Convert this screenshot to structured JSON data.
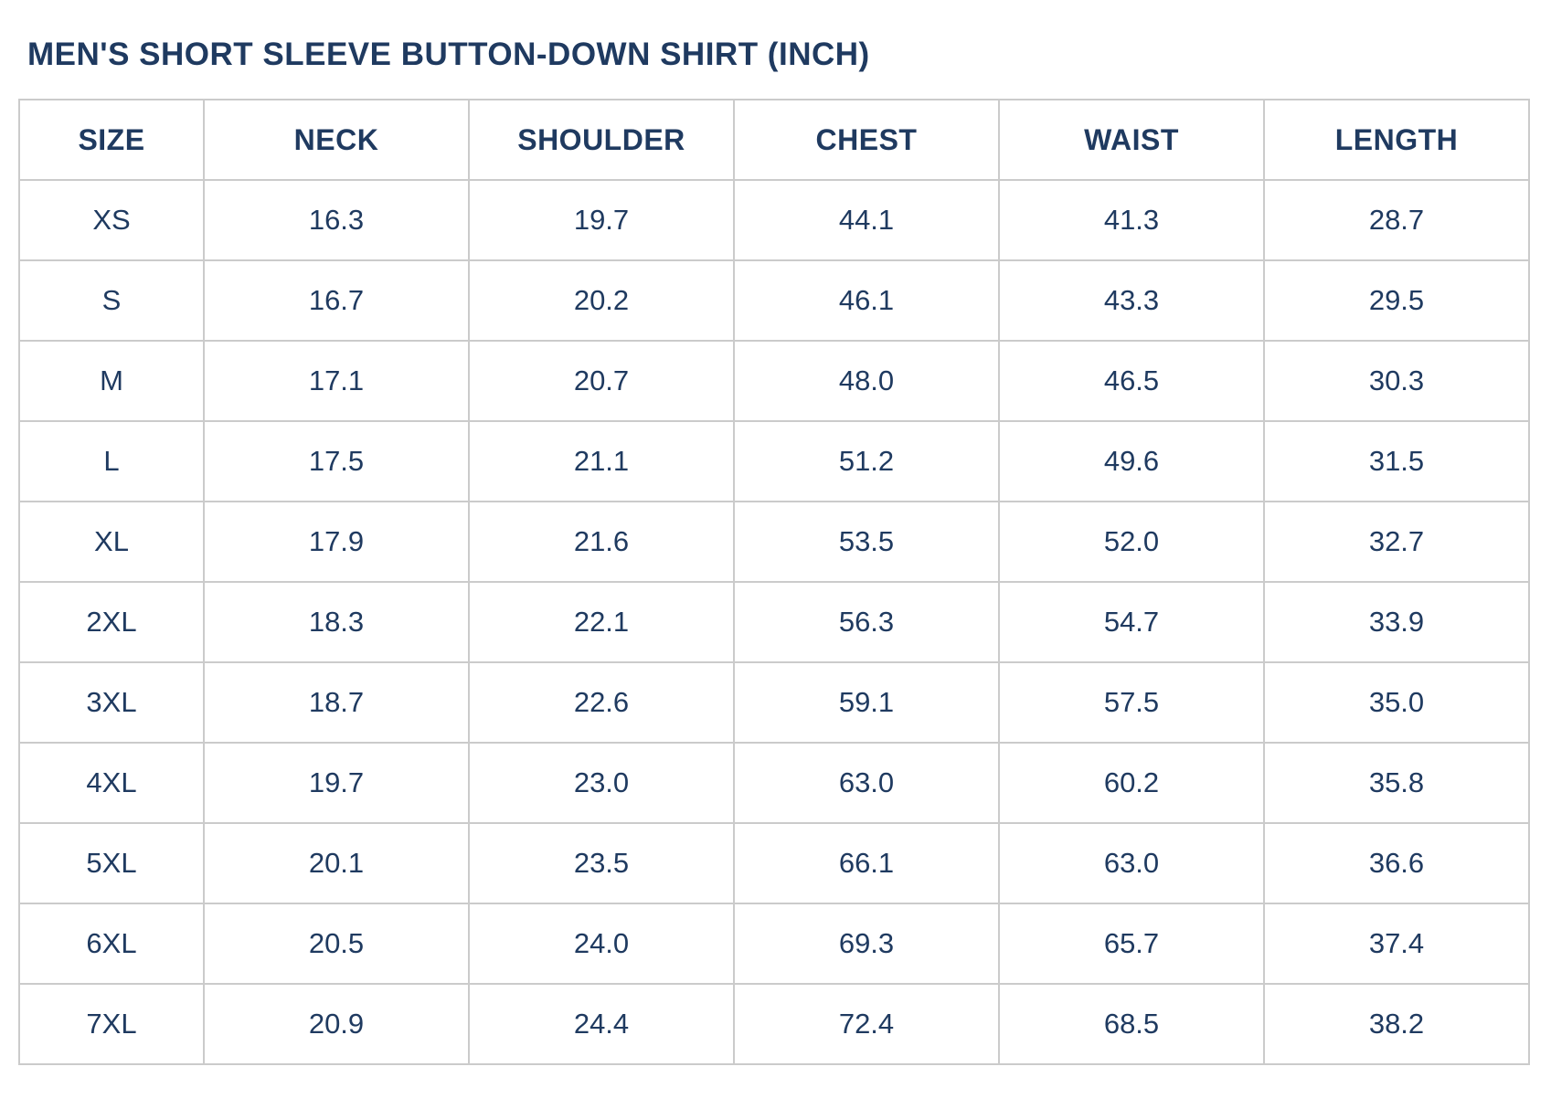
{
  "colors": {
    "text": "#1f3a60",
    "border": "#cbcbcb",
    "background": "#ffffff"
  },
  "chart_data": {
    "type": "table",
    "title": "MEN'S SHORT SLEEVE BUTTON-DOWN SHIRT (INCH)",
    "unit": "inch",
    "columns": [
      "SIZE",
      "NECK",
      "SHOULDER",
      "CHEST",
      "WAIST",
      "LENGTH"
    ],
    "rows": [
      [
        "XS",
        "16.3",
        "19.7",
        "44.1",
        "41.3",
        "28.7"
      ],
      [
        "S",
        "16.7",
        "20.2",
        "46.1",
        "43.3",
        "29.5"
      ],
      [
        "M",
        "17.1",
        "20.7",
        "48.0",
        "46.5",
        "30.3"
      ],
      [
        "L",
        "17.5",
        "21.1",
        "51.2",
        "49.6",
        "31.5"
      ],
      [
        "XL",
        "17.9",
        "21.6",
        "53.5",
        "52.0",
        "32.7"
      ],
      [
        "2XL",
        "18.3",
        "22.1",
        "56.3",
        "54.7",
        "33.9"
      ],
      [
        "3XL",
        "18.7",
        "22.6",
        "59.1",
        "57.5",
        "35.0"
      ],
      [
        "4XL",
        "19.7",
        "23.0",
        "63.0",
        "60.2",
        "35.8"
      ],
      [
        "5XL",
        "20.1",
        "23.5",
        "66.1",
        "63.0",
        "36.6"
      ],
      [
        "6XL",
        "20.5",
        "24.0",
        "69.3",
        "65.7",
        "37.4"
      ],
      [
        "7XL",
        "20.9",
        "24.4",
        "72.4",
        "68.5",
        "38.2"
      ]
    ]
  }
}
